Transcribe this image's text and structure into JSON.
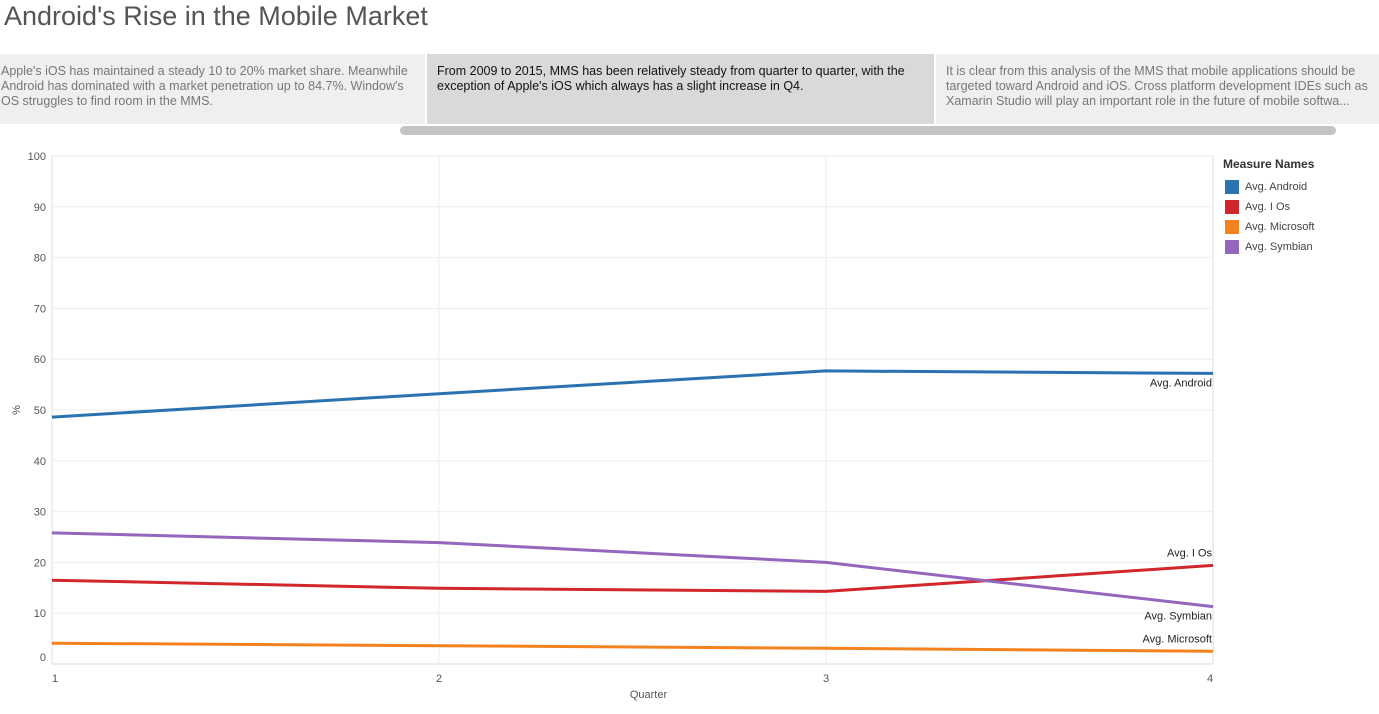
{
  "page": {
    "title": "Android's Rise in the Mobile Market"
  },
  "story_points": [
    {
      "text": "Apple's iOS has maintained a steady 10 to 20% market share.  Meanwhile Android has dominated with a market penetration up to 84.7%.  Window's OS struggles to find room in the MMS."
    },
    {
      "text": "From 2009 to 2015, MMS has been relatively steady from quarter to quarter, with the exception of Apple's iOS which always has a slight increase in Q4."
    },
    {
      "text": "It is clear from this analysis of the MMS that mobile applications should be targeted toward Android and iOS.  Cross platform development IDEs such as Xamarin Studio will play an important role in the future of mobile softwa..."
    }
  ],
  "legend": {
    "title": "Measure Names"
  },
  "chart_data": {
    "type": "line",
    "title": "",
    "xlabel": "Quarter",
    "ylabel": "%",
    "x": [
      1,
      2,
      3,
      4
    ],
    "x_ticks": [
      "1",
      "2",
      "3",
      "4"
    ],
    "y_ticks": [
      0,
      10,
      20,
      30,
      40,
      50,
      60,
      70,
      80,
      90,
      100
    ],
    "ylim": [
      0,
      100
    ],
    "grid": true,
    "legend_position": "right",
    "series": [
      {
        "name": "Avg. Android",
        "color": "#2a72b0",
        "values": [
          48.6,
          53.2,
          57.7,
          57.2
        ],
        "end_label": "Avg. Android"
      },
      {
        "name": "Avg. I Os",
        "color": "#d1262b",
        "values": [
          16.5,
          14.9,
          14.3,
          19.4
        ],
        "end_label": "Avg. I Os"
      },
      {
        "name": "Avg. Microsoft",
        "color": "#f4821f",
        "values": [
          4.1,
          3.6,
          3.1,
          2.5
        ],
        "end_label": "Avg. Microsoft"
      },
      {
        "name": "Avg. Symbian",
        "color": "#9466be",
        "values": [
          25.8,
          23.9,
          20.0,
          11.3
        ],
        "end_label": "Avg. Symbian"
      }
    ]
  }
}
